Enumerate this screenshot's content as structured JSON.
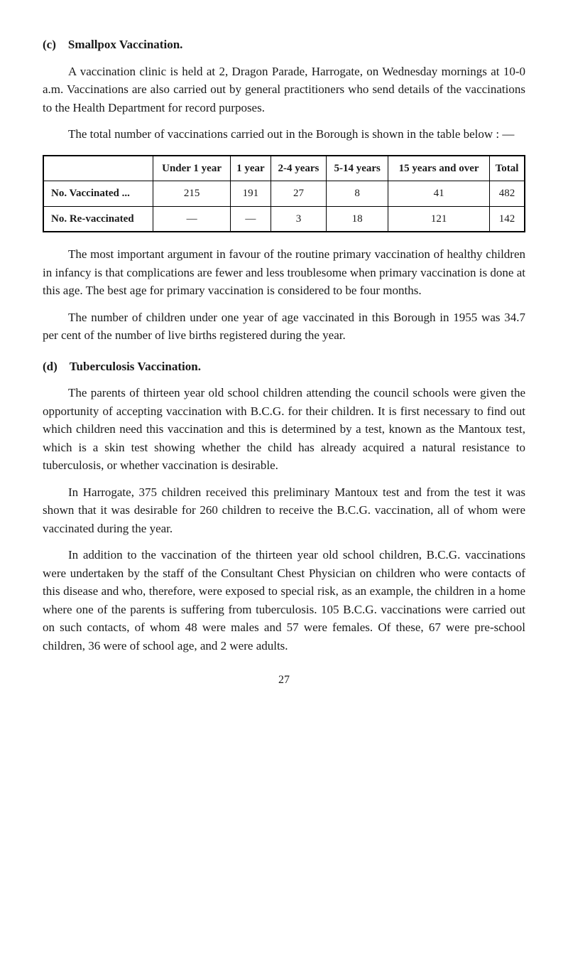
{
  "section_c": {
    "heading": "(c) Smallpox Vaccination.",
    "p1": "A vaccination clinic is held at 2, Dragon Parade, Harrogate, on Wednesday mornings at 10-0 a.m.  Vaccinations are also carried out by general practitioners who send details of the vaccinations to the Health Department for record purposes.",
    "p2": "The total number of vaccinations carried out in the Borough is shown in the table below : —",
    "table": {
      "columns": [
        "",
        "Under 1 year",
        "1 year",
        "2-4 years",
        "5-14 years",
        "15 years and over",
        "Total"
      ],
      "rows": [
        [
          "No. Vaccinated ...",
          "215",
          "191",
          "27",
          "8",
          "41",
          "482"
        ],
        [
          "No. Re-vaccinated",
          "—",
          "—",
          "3",
          "18",
          "121",
          "142"
        ]
      ],
      "border_color": "#000000",
      "background_color": "#ffffff",
      "header_fontweight": "bold",
      "font_size": 15
    },
    "p3": "The most important argument in favour of the routine primary vaccination of healthy children in infancy is that complications are fewer and less troublesome when primary vaccination is done at this age.  The best age for primary vaccination is considered to be four months.",
    "p4": "The number of children under one year of age vaccinated in this Borough in 1955 was 34.7 per cent of the number of live births registered during the year."
  },
  "section_d": {
    "heading": "(d) Tuberculosis Vaccination.",
    "p1": "The parents of thirteen year old school children attending the council schools were given the opportunity of accepting vaccination with B.C.G. for their children.  It is first necessary to find out which children need this vaccination and this is determined by a test, known as the Mantoux test, which is a skin test showing whether the child has already acquired a natural resistance to tuberculosis, or whether vaccination is desirable.",
    "p2": "In Harrogate, 375 children received this preliminary Mantoux test and from the test it was shown that it was desirable for 260 children to receive the B.C.G. vaccination, all of whom were vaccinated during the year.",
    "p3": "In addition to the vaccination of the thirteen year old school children, B.C.G. vaccinations were undertaken by the staff of the Consultant Chest Physician on children who were contacts of this disease and who, therefore, were exposed to special risk, as an example, the children in a home where one of the parents is suffering from tuberculosis.  105 B.C.G. vaccinations were carried out on such contacts, of whom 48 were males and 57 were females. Of these, 67 were pre-school children, 36 were of school age, and 2 were adults."
  },
  "page_number": "27"
}
